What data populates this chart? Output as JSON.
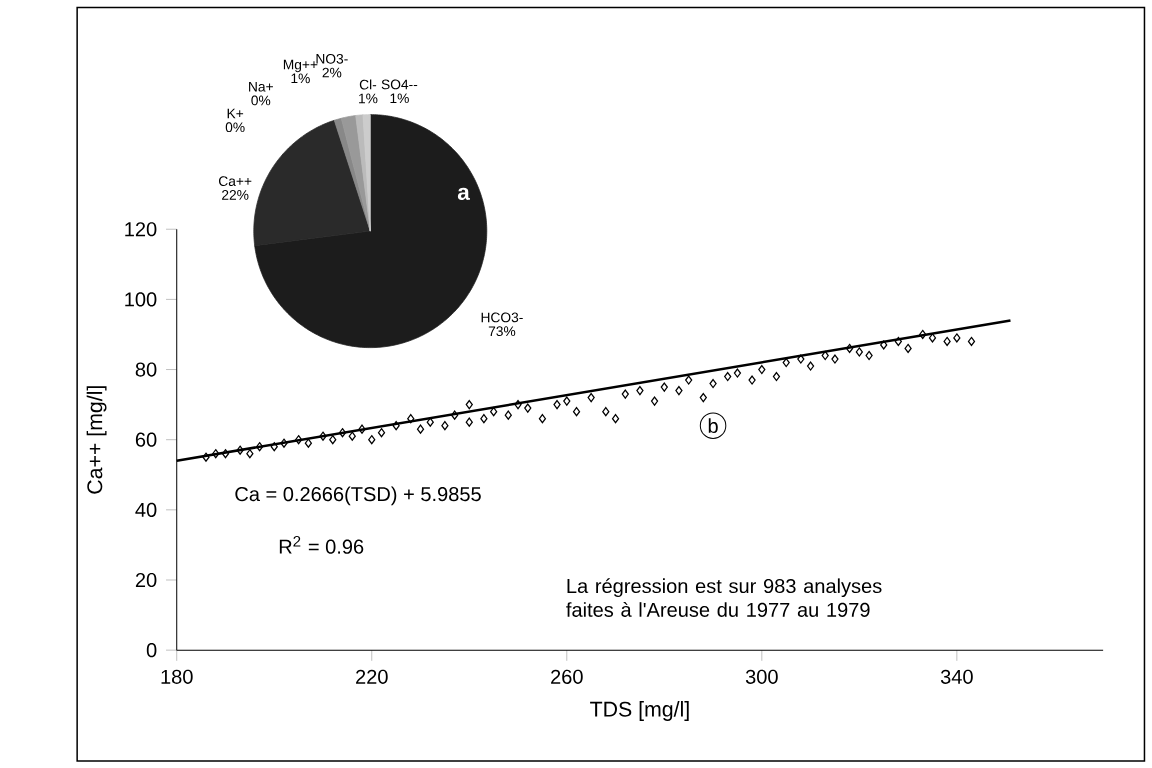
{
  "chart_data": [
    {
      "type": "scatter",
      "xlabel": "TDS [mg/l]",
      "ylabel": "Ca++ [mg/l]",
      "xlim": [
        180,
        370
      ],
      "ylim": [
        0,
        120
      ],
      "xticks": [
        180,
        220,
        260,
        300,
        340
      ],
      "yticks": [
        0,
        20,
        40,
        60,
        80,
        100,
        120
      ],
      "series": [
        {
          "type": "scatter",
          "marker": "diamond",
          "color": "#000000",
          "x": [
            186,
            188,
            190,
            193,
            195,
            197,
            200,
            202,
            205,
            207,
            210,
            212,
            214,
            216,
            218,
            220,
            222,
            225,
            228,
            230,
            232,
            235,
            237,
            240,
            240,
            243,
            245,
            248,
            250,
            252,
            255,
            258,
            260,
            262,
            265,
            268,
            270,
            272,
            275,
            278,
            280,
            283,
            285,
            288,
            290,
            293,
            295,
            298,
            300,
            303,
            305,
            308,
            310,
            313,
            315,
            318,
            320,
            322,
            325,
            328,
            330,
            333,
            335,
            338,
            340,
            343
          ],
          "values": [
            55,
            56,
            56,
            57,
            56,
            58,
            58,
            59,
            60,
            59,
            61,
            60,
            62,
            61,
            63,
            60,
            62,
            64,
            66,
            63,
            65,
            64,
            67,
            70,
            65,
            66,
            68,
            67,
            70,
            69,
            66,
            70,
            71,
            68,
            72,
            68,
            66,
            73,
            74,
            71,
            75,
            74,
            77,
            72,
            76,
            78,
            79,
            77,
            80,
            78,
            82,
            83,
            81,
            84,
            83,
            86,
            85,
            84,
            87,
            88,
            86,
            90,
            89,
            88,
            89,
            88
          ]
        },
        {
          "type": "line",
          "color": "#000000",
          "x": [
            180,
            351
          ],
          "values": [
            54,
            94
          ]
        }
      ],
      "annotations": [
        "Ca = 0.2666(TSD) + 5.9855",
        "R$^{2}$ = 0.96",
        "La régression est sur 983 analyses faites à l'Areuse du 1977 au 1979",
        "b"
      ]
    },
    {
      "type": "pie",
      "categories": [
        "HCO3-",
        "Ca++",
        "K+",
        "Na+",
        "Mg++",
        "NO3-",
        "Cl-",
        "SO4--"
      ],
      "values": [
        73,
        22,
        0,
        0,
        1,
        2,
        1,
        1
      ],
      "colors": [
        "#1c1c1c",
        "#2a2a2a",
        "#555555",
        "#777777",
        "#888888",
        "#999999",
        "#bbbbbb",
        "#cccccc"
      ],
      "value_labels": [
        "73%",
        "22%",
        "0%",
        "0%",
        "1%",
        "2%",
        "1%",
        "1%"
      ],
      "annotations": [
        "a"
      ]
    }
  ]
}
